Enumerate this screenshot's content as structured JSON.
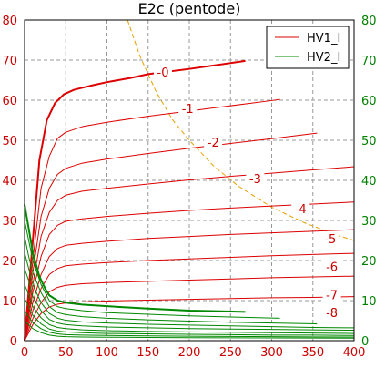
{
  "chart_data": {
    "type": "line",
    "title": "E2c (pentode)",
    "xlabel": "",
    "ylabel": "",
    "xlim": [
      0,
      400
    ],
    "ylim": [
      0,
      80
    ],
    "y2lim": [
      0,
      80
    ],
    "grid": true,
    "legend_position": "top-right",
    "x_ticks": [
      0,
      50,
      100,
      150,
      200,
      250,
      300,
      350,
      400
    ],
    "y_ticks": [
      0,
      10,
      20,
      30,
      40,
      50,
      60,
      70,
      80
    ],
    "colors": {
      "hv1": "#dd0000",
      "hv2": "#008800",
      "load": "#e8a000",
      "grid": "#999999"
    },
    "legend": [
      "HV1_I",
      "HV2_I"
    ],
    "series": [
      {
        "name": "HV1_I",
        "grid_voltage": "-0",
        "x": [
          0,
          10,
          18,
          27,
          37,
          48,
          60,
          80,
          100,
          130,
          150,
          200,
          268
        ],
        "y": [
          0,
          25,
          45,
          55,
          59.3,
          61.5,
          62.6,
          63.6,
          64.5,
          65.6,
          66.5,
          67.8,
          69.8
        ]
      },
      {
        "name": "HV1_I",
        "grid_voltage": "-1",
        "x": [
          0,
          10,
          20,
          30,
          40,
          50,
          70,
          100,
          150,
          200,
          250,
          300,
          310
        ],
        "y": [
          0,
          20,
          38,
          46,
          50.5,
          52,
          53.4,
          54.5,
          56,
          57.3,
          58.6,
          59.9,
          60.2
        ]
      },
      {
        "name": "HV1_I",
        "grid_voltage": "-2",
        "x": [
          0,
          10,
          20,
          30,
          40,
          50,
          70,
          100,
          150,
          200,
          250,
          300,
          355
        ],
        "y": [
          0,
          17,
          31,
          38,
          41.5,
          43,
          44.3,
          45.3,
          46.7,
          48,
          49.2,
          50.4,
          51.8
        ]
      },
      {
        "name": "HV1_I",
        "grid_voltage": "-3",
        "x": [
          0,
          10,
          20,
          30,
          40,
          50,
          70,
          100,
          150,
          200,
          250,
          300,
          350,
          400
        ],
        "y": [
          0,
          14,
          26,
          32,
          35,
          36.3,
          37.3,
          38,
          39.1,
          40.1,
          41,
          41.8,
          42.6,
          43.4
        ]
      },
      {
        "name": "HV1_I",
        "grid_voltage": "-4",
        "x": [
          0,
          10,
          20,
          30,
          40,
          50,
          70,
          100,
          150,
          200,
          250,
          300,
          350,
          400
        ],
        "y": [
          0,
          12,
          21,
          26.5,
          28.8,
          29.8,
          30.4,
          31,
          31.8,
          32.5,
          33.1,
          33.6,
          34.1,
          34.6
        ]
      },
      {
        "name": "HV1_I",
        "grid_voltage": "-5",
        "x": [
          0,
          10,
          20,
          30,
          40,
          50,
          70,
          100,
          150,
          200,
          250,
          300,
          350,
          400
        ],
        "y": [
          0,
          9.5,
          16.5,
          21,
          23,
          23.8,
          24.3,
          24.8,
          25.5,
          26,
          26.5,
          26.9,
          27.3,
          27.7
        ]
      },
      {
        "name": "HV1_I",
        "grid_voltage": "-6",
        "x": [
          0,
          10,
          20,
          30,
          40,
          50,
          70,
          100,
          150,
          200,
          250,
          300,
          350,
          400
        ],
        "y": [
          0,
          7.5,
          13,
          16.5,
          18,
          18.7,
          19.1,
          19.5,
          20,
          20.4,
          20.8,
          21.2,
          21.5,
          21.8
        ]
      },
      {
        "name": "HV1_I",
        "grid_voltage": "-7",
        "x": [
          0,
          10,
          20,
          30,
          40,
          50,
          70,
          100,
          150,
          200,
          250,
          300,
          350,
          400
        ],
        "y": [
          0,
          5.5,
          9.5,
          12.2,
          13.3,
          13.8,
          14.2,
          14.5,
          14.8,
          15.1,
          15.4,
          15.7,
          15.9,
          16.1
        ]
      },
      {
        "name": "HV1_I",
        "grid_voltage": "-8",
        "x": [
          0,
          10,
          20,
          30,
          40,
          50,
          70,
          100,
          150,
          200,
          250,
          300,
          350,
          400
        ],
        "y": [
          0,
          4,
          6.8,
          8.4,
          9.1,
          9.4,
          9.7,
          9.9,
          10.1,
          10.3,
          10.5,
          10.7,
          10.8,
          11
        ]
      },
      {
        "name": "HV2_I",
        "grid_voltage": "-0",
        "x": [
          0,
          5,
          10,
          18,
          25,
          30,
          40,
          50,
          70,
          100,
          150,
          200,
          268
        ],
        "y": [
          34,
          28,
          22,
          16,
          13,
          11.3,
          10,
          9.5,
          9,
          8.6,
          8,
          7.5,
          7.2
        ]
      },
      {
        "name": "HV2_I",
        "grid_voltage": "-1",
        "x": [
          0,
          5,
          10,
          20,
          30,
          40,
          50,
          70,
          100,
          150,
          200,
          250,
          310
        ],
        "y": [
          30,
          25,
          20,
          14,
          10,
          8.5,
          8,
          7.5,
          7,
          6.6,
          6.2,
          5.9,
          5.6
        ]
      },
      {
        "name": "HV2_I",
        "grid_voltage": "-2",
        "x": [
          0,
          5,
          10,
          20,
          30,
          40,
          50,
          70,
          100,
          150,
          200,
          250,
          300,
          355
        ],
        "y": [
          26,
          21,
          17,
          12,
          8.5,
          7,
          6.5,
          6,
          5.6,
          5.2,
          4.9,
          4.6,
          4.4,
          4.2
        ]
      },
      {
        "name": "HV2_I",
        "grid_voltage": "-3",
        "x": [
          0,
          5,
          10,
          20,
          30,
          40,
          50,
          70,
          100,
          150,
          200,
          250,
          300,
          350,
          400
        ],
        "y": [
          22,
          18,
          14,
          9.5,
          6.8,
          5.6,
          5.1,
          4.7,
          4.4,
          4.1,
          3.9,
          3.7,
          3.5,
          3.3,
          3.2
        ]
      },
      {
        "name": "HV2_I",
        "grid_voltage": "-4",
        "x": [
          0,
          5,
          10,
          20,
          30,
          40,
          50,
          70,
          100,
          150,
          200,
          250,
          300,
          350,
          400
        ],
        "y": [
          18,
          15,
          11,
          7.5,
          5.3,
          4.4,
          4,
          3.7,
          3.4,
          3.2,
          3,
          2.9,
          2.8,
          2.7,
          2.6
        ]
      },
      {
        "name": "HV2_I",
        "grid_voltage": "-5",
        "x": [
          0,
          5,
          10,
          20,
          30,
          40,
          50,
          70,
          100,
          150,
          200,
          250,
          300,
          350,
          400
        ],
        "y": [
          14,
          11.5,
          8.5,
          5.7,
          4,
          3.3,
          3,
          2.7,
          2.5,
          2.3,
          2.2,
          2.1,
          2,
          1.9,
          1.8
        ]
      },
      {
        "name": "HV2_I",
        "grid_voltage": "-6",
        "x": [
          0,
          5,
          10,
          20,
          30,
          40,
          50,
          70,
          100,
          150,
          200,
          250,
          300,
          350,
          400
        ],
        "y": [
          10.5,
          8.5,
          6.3,
          4.2,
          2.9,
          2.4,
          2.2,
          2,
          1.8,
          1.7,
          1.6,
          1.5,
          1.4,
          1.4,
          1.3
        ]
      },
      {
        "name": "HV2_I",
        "grid_voltage": "-7",
        "x": [
          0,
          5,
          10,
          20,
          30,
          40,
          50,
          70,
          100,
          150,
          200,
          250,
          300,
          350,
          400
        ],
        "y": [
          7.5,
          6,
          4.5,
          3,
          2.1,
          1.7,
          1.5,
          1.4,
          1.3,
          1.2,
          1.1,
          1.05,
          1,
          0.95,
          0.9
        ]
      },
      {
        "name": "HV2_I",
        "grid_voltage": "-8",
        "x": [
          0,
          5,
          10,
          20,
          30,
          40,
          50,
          70,
          100,
          150,
          200,
          250,
          300,
          350,
          400
        ],
        "y": [
          5,
          4,
          3,
          2,
          1.4,
          1.1,
          1,
          0.9,
          0.85,
          0.8,
          0.75,
          0.7,
          0.68,
          0.65,
          0.62
        ]
      }
    ],
    "annotations": [
      {
        "text": "-0",
        "x": 168,
        "y": 67
      },
      {
        "text": "-1",
        "x": 198,
        "y": 58
      },
      {
        "text": "-2",
        "x": 229,
        "y": 49.5
      },
      {
        "text": "-3",
        "x": 280,
        "y": 40.5
      },
      {
        "text": "-4",
        "x": 335,
        "y": 33
      },
      {
        "text": "-5",
        "x": 371,
        "y": 25.5
      },
      {
        "text": "-6",
        "x": 373,
        "y": 18.5
      },
      {
        "text": "-7",
        "x": 373,
        "y": 11.5
      },
      {
        "text": "-8",
        "x": 373,
        "y": 7
      }
    ],
    "load_line": {
      "x": [
        125,
        140,
        160,
        180,
        200,
        230,
        260,
        300,
        340,
        380,
        400
      ],
      "y": [
        80,
        71,
        62,
        55,
        50,
        43.5,
        38.5,
        33.3,
        29.4,
        26.3,
        25
      ]
    }
  }
}
